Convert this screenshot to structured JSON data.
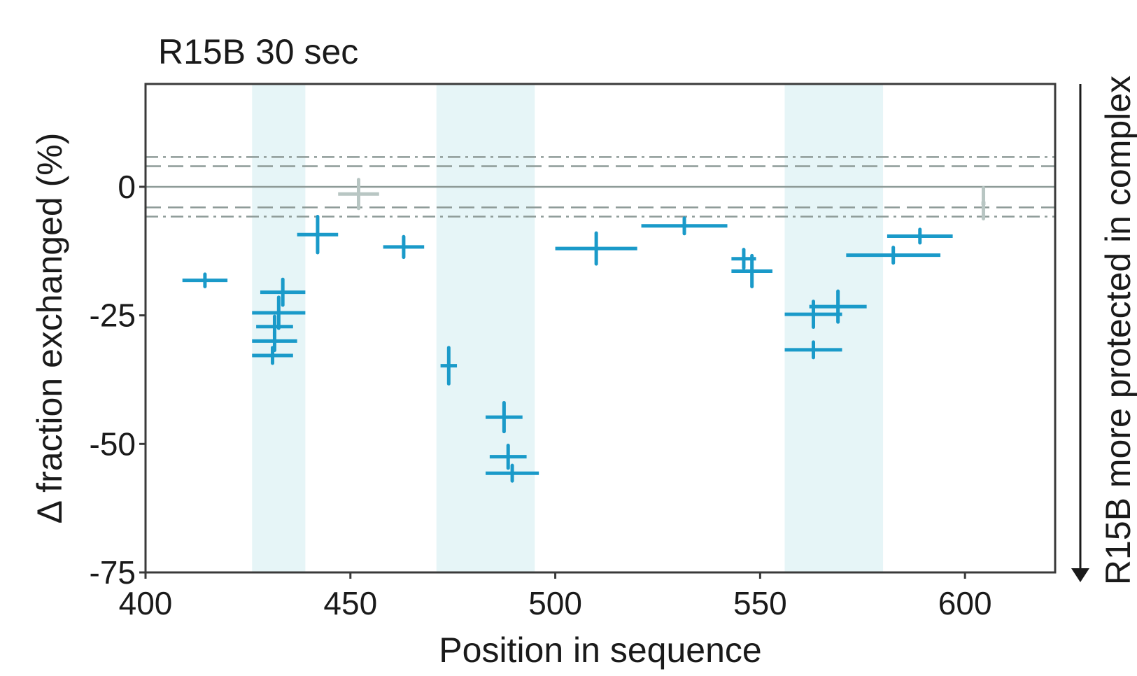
{
  "chart_data": {
    "type": "scatter",
    "title": "R15B 30 sec",
    "xlabel": "Position in sequence",
    "ylabel": "Δ fraction exchanged (%)",
    "annotation": "R15B more protected in complex",
    "xlim": [
      400,
      622
    ],
    "ylim": [
      -75,
      20
    ],
    "xticks": [
      400,
      450,
      500,
      550,
      600
    ],
    "yticks": [
      0,
      -25,
      -50,
      -75
    ],
    "xtick_labels": [
      "400",
      "450",
      "500",
      "550",
      "600"
    ],
    "ytick_labels": [
      "0",
      "-25",
      "-50",
      "-75"
    ],
    "grid": false,
    "shaded_regions": [
      [
        426,
        439
      ],
      [
        471,
        495
      ],
      [
        556,
        580
      ]
    ],
    "reference_lines": [
      {
        "y": 0,
        "style": "solid"
      },
      {
        "y": 4,
        "style": "dashed"
      },
      {
        "y": -4,
        "style": "dashed"
      },
      {
        "y": 5.8,
        "style": "dashdot"
      },
      {
        "y": -5.8,
        "style": "dashdot"
      }
    ],
    "colors": {
      "significant": "#1a9ac9",
      "not_significant": "#b8c6c3",
      "shade": "#e6f5f7",
      "reference": "#8e9b98"
    },
    "points": [
      {
        "x_start": 409,
        "x_end": 420,
        "y": -18.2,
        "err": 1.2,
        "significant": true
      },
      {
        "x_start": 428,
        "x_end": 439,
        "y": -20.5,
        "err": 2.5,
        "significant": true
      },
      {
        "x_start": 426,
        "x_end": 439,
        "y": -24.5,
        "err": 3.0,
        "significant": true
      },
      {
        "x_start": 427,
        "x_end": 436,
        "y": -27.2,
        "err": 2.0,
        "significant": true
      },
      {
        "x_start": 426,
        "x_end": 437,
        "y": -30.0,
        "err": 1.8,
        "significant": true
      },
      {
        "x_start": 426,
        "x_end": 436,
        "y": -32.8,
        "err": 1.5,
        "significant": true
      },
      {
        "x_start": 437,
        "x_end": 447,
        "y": -9.3,
        "err": 3.5,
        "significant": true
      },
      {
        "x_start": 447,
        "x_end": 457,
        "y": -1.4,
        "err": 2.8,
        "significant": false
      },
      {
        "x_start": 458,
        "x_end": 468,
        "y": -11.7,
        "err": 2.0,
        "significant": true
      },
      {
        "x_start": 472,
        "x_end": 476,
        "y": -34.8,
        "err": 3.5,
        "significant": true
      },
      {
        "x_start": 483,
        "x_end": 492,
        "y": -44.8,
        "err": 2.8,
        "significant": true
      },
      {
        "x_start": 484,
        "x_end": 493,
        "y": -52.5,
        "err": 2.2,
        "significant": true
      },
      {
        "x_start": 483,
        "x_end": 496,
        "y": -55.7,
        "err": 1.5,
        "significant": true
      },
      {
        "x_start": 500,
        "x_end": 520,
        "y": -12.0,
        "err": 3.0,
        "significant": true
      },
      {
        "x_start": 521,
        "x_end": 542,
        "y": -7.6,
        "err": 1.5,
        "significant": true
      },
      {
        "x_start": 543,
        "x_end": 549,
        "y": -14.0,
        "err": 1.8,
        "significant": true
      },
      {
        "x_start": 543,
        "x_end": 553,
        "y": -16.4,
        "err": 3.0,
        "significant": true
      },
      {
        "x_start": 556,
        "x_end": 570,
        "y": -24.8,
        "err": 2.5,
        "significant": true
      },
      {
        "x_start": 562,
        "x_end": 576,
        "y": -23.3,
        "err": 3.0,
        "significant": true
      },
      {
        "x_start": 556,
        "x_end": 570,
        "y": -31.7,
        "err": 1.5,
        "significant": true
      },
      {
        "x_start": 571,
        "x_end": 594,
        "y": -13.3,
        "err": 1.5,
        "significant": true
      },
      {
        "x_start": 581,
        "x_end": 597,
        "y": -9.6,
        "err": 1.3,
        "significant": true
      },
      {
        "x_start": 604,
        "x_end": 605,
        "y": -3.2,
        "err": 3.0,
        "significant": false
      }
    ]
  }
}
